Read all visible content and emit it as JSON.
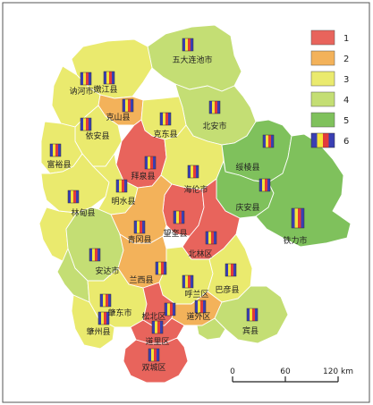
{
  "colors": {
    "1": "#e8645c",
    "2": "#f3b25a",
    "3": "#eaea6e",
    "4": "#c4de74",
    "5": "#7fc15c",
    "icon": [
      "#3a3fb3",
      "#f5e43a",
      "#e23b3b",
      "#3a3fb3"
    ]
  },
  "legend": [
    {
      "label": "1",
      "level": 1
    },
    {
      "label": "2",
      "level": 2
    },
    {
      "label": "3",
      "level": 3
    },
    {
      "label": "4",
      "level": 4
    },
    {
      "label": "5",
      "level": 5
    },
    {
      "label": "6",
      "level": 6
    }
  ],
  "counties": [
    {
      "name": "五大连池市",
      "level": 4
    },
    {
      "name": "嫩江县",
      "level": 3
    },
    {
      "name": "讷河市",
      "level": 3
    },
    {
      "name": "北安市",
      "level": 4
    },
    {
      "name": "克山县",
      "level": 2
    },
    {
      "name": "依安县",
      "level": 3
    },
    {
      "name": "克东县",
      "level": 3
    },
    {
      "name": "富裕县",
      "level": 3
    },
    {
      "name": "拜泉县",
      "level": 1
    },
    {
      "name": "海伦市",
      "level": 3
    },
    {
      "name": "绥棱县",
      "level": 5
    },
    {
      "name": "庆安县",
      "level": 5
    },
    {
      "name": "林甸县",
      "level": 3
    },
    {
      "name": "明水县",
      "level": 3
    },
    {
      "name": "铁力市",
      "level": 5
    },
    {
      "name": "望奎县",
      "level": 1
    },
    {
      "name": "青冈县",
      "level": 2
    },
    {
      "name": "北林区",
      "level": 1
    },
    {
      "name": "安达市",
      "level": 4
    },
    {
      "name": "兰西县",
      "level": 2
    },
    {
      "name": "呼兰区",
      "level": 3
    },
    {
      "name": "巴彦县",
      "level": 3
    },
    {
      "name": "肇东市",
      "level": 3
    },
    {
      "name": "松北区",
      "level": 1
    },
    {
      "name": "道外区",
      "level": 2
    },
    {
      "name": "肇州县",
      "level": 3
    },
    {
      "name": "道里区",
      "level": 1
    },
    {
      "name": "宾县",
      "level": 4
    },
    {
      "name": "双城区",
      "level": 1
    }
  ],
  "scale_bar": {
    "ticks": [
      "0",
      "60",
      "120 km"
    ]
  }
}
